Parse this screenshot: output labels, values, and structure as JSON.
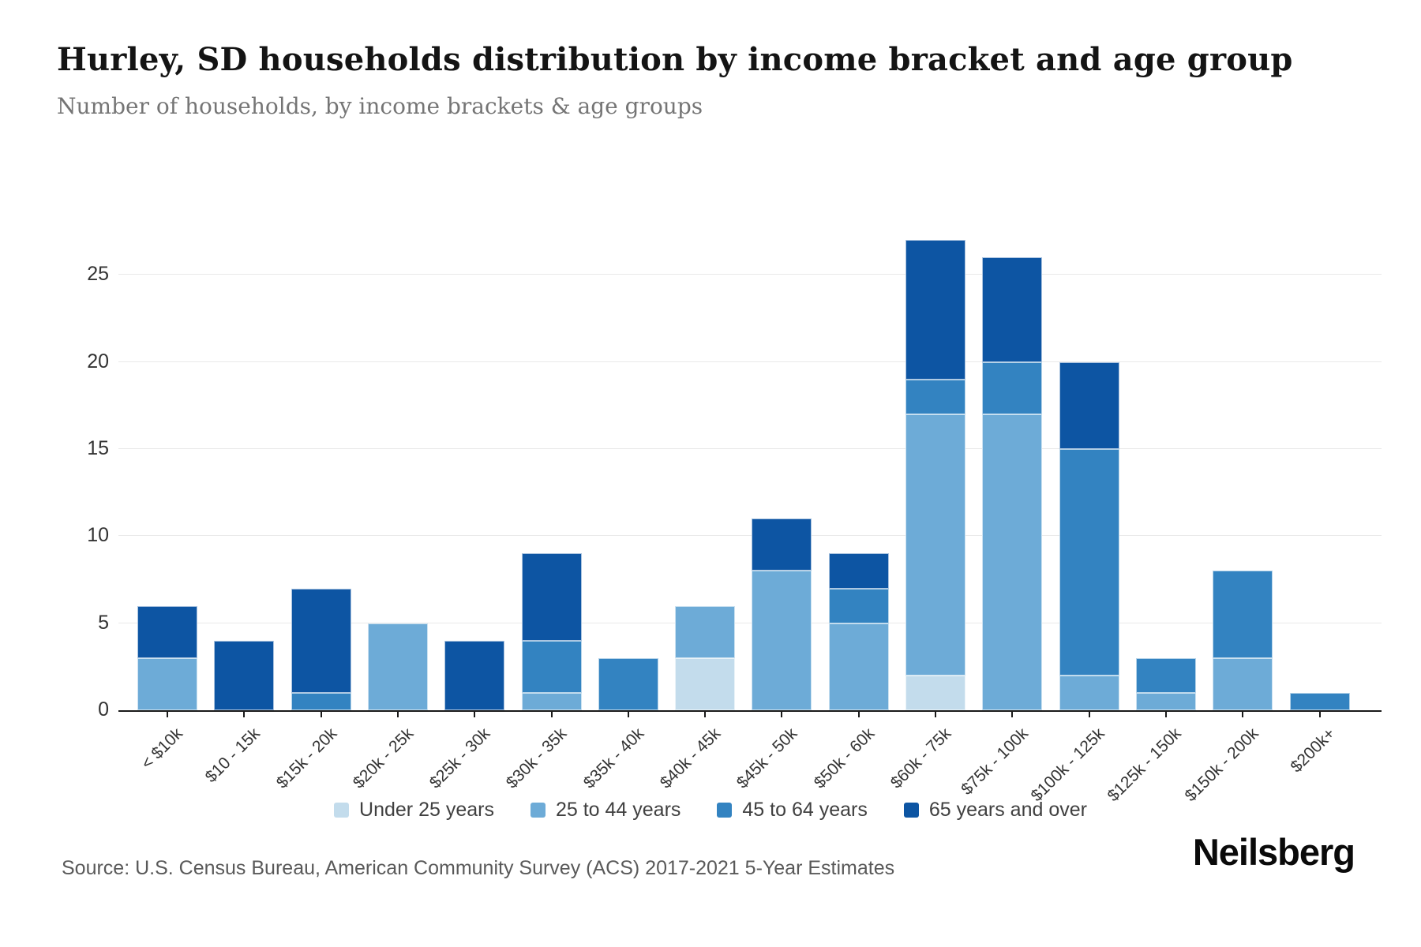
{
  "header": {
    "title": "Hurley, SD households distribution by income bracket and age group",
    "subtitle": "Number of households, by income brackets & age groups"
  },
  "chart_data": {
    "type": "bar",
    "stacked": true,
    "categories": [
      "< $10k",
      "$10 - 15k",
      "$15k - 20k",
      "$20k - 25k",
      "$25k - 30k",
      "$30k - 35k",
      "$35k - 40k",
      "$40k - 45k",
      "$45k - 50k",
      "$50k - 60k",
      "$60k - 75k",
      "$75k - 100k",
      "$100k - 125k",
      "$125k - 150k",
      "$150k - 200k",
      "$200k+"
    ],
    "series": [
      {
        "name": "Under 25 years",
        "color": "#c3dcec",
        "values": [
          0,
          0,
          0,
          0,
          0,
          0,
          0,
          3,
          0,
          0,
          2,
          0,
          0,
          0,
          0,
          0
        ]
      },
      {
        "name": "25 to 44 years",
        "color": "#6dabd7",
        "values": [
          3,
          0,
          0,
          5,
          0,
          1,
          0,
          3,
          8,
          5,
          15,
          17,
          2,
          1,
          3,
          0
        ]
      },
      {
        "name": "45 to 64 years",
        "color": "#3383c1",
        "values": [
          0,
          0,
          1,
          0,
          0,
          3,
          3,
          0,
          0,
          2,
          2,
          3,
          13,
          2,
          5,
          1
        ]
      },
      {
        "name": "65 years and over",
        "color": "#0d55a3",
        "values": [
          3,
          4,
          6,
          0,
          4,
          5,
          0,
          0,
          3,
          2,
          8,
          6,
          5,
          0,
          0,
          0
        ]
      }
    ],
    "totals": [
      6,
      4,
      7,
      5,
      4,
      9,
      3,
      6,
      11,
      9,
      27,
      26,
      20,
      3,
      8,
      1
    ],
    "y_ticks": [
      0,
      5,
      10,
      15,
      20,
      25
    ],
    "ylim": [
      0,
      29
    ],
    "grid": "horizontal",
    "legend_position": "bottom",
    "axis_color": "#1a1a1a",
    "grid_color": "#e9e9e9"
  },
  "footer": {
    "source": "Source: U.S. Census Bureau, American Community Survey (ACS) 2017-2021 5-Year Estimates",
    "brand": "Neilsberg"
  }
}
